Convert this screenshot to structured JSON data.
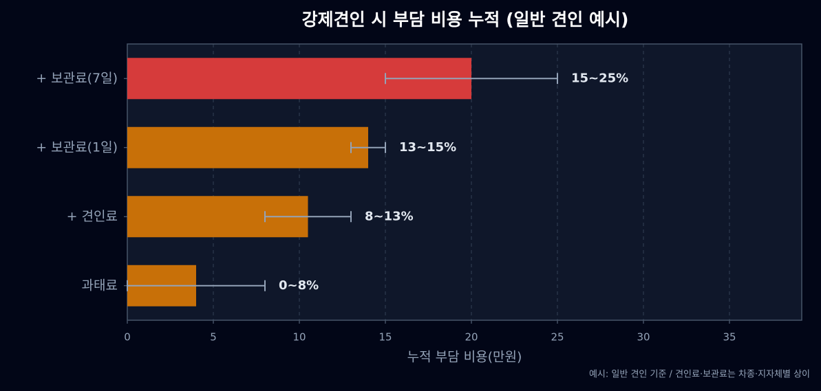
{
  "chart_data": {
    "type": "barh",
    "title": "강제견인 시 부담 비용 누적 (일반 견인 예시)",
    "xlabel": "누적 부담 비용(만원)",
    "footnote": "예시: 일반 견인 기준 / 견인료·보관료는 차종·지자체별 상이",
    "categories": [
      "+ 보관료(7일)",
      "+ 보관료(1일)",
      "+ 견인료",
      "과태료"
    ],
    "values": [
      20,
      14,
      10.5,
      4
    ],
    "error_low": [
      15,
      13,
      8,
      0
    ],
    "error_high": [
      25,
      15,
      13,
      8
    ],
    "annotations": [
      "15~25%",
      "13~15%",
      "8~13%",
      "0~8%"
    ],
    "colors": [
      "#d63b3b",
      "#c87008",
      "#c87008",
      "#c87008"
    ],
    "error_color": "#94a3b8",
    "xlim": [
      0,
      39.2
    ],
    "xticks": [
      0,
      5,
      10,
      15,
      20,
      25,
      30,
      35
    ],
    "grid": true
  }
}
